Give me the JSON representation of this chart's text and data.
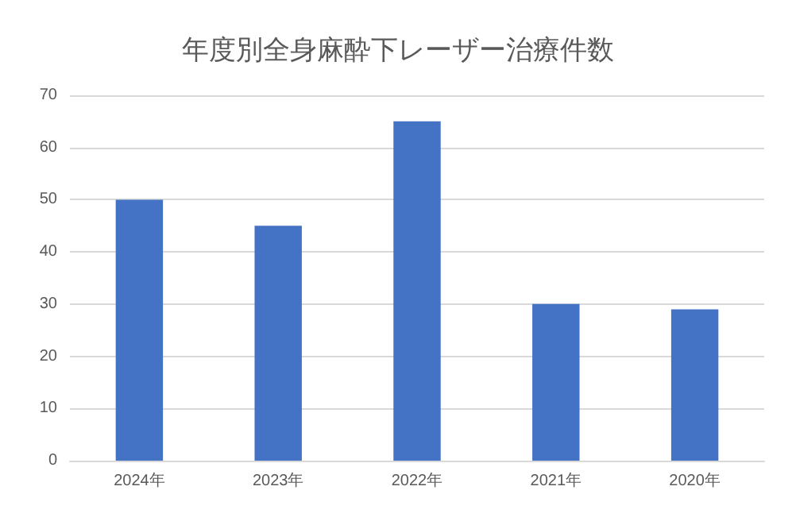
{
  "chart_data": {
    "type": "bar",
    "title": "年度別全身麻酔下レーザー治療件数",
    "categories": [
      "2024年",
      "2023年",
      "2022年",
      "2021年",
      "2020年"
    ],
    "values": [
      50,
      45,
      65,
      30,
      29
    ],
    "color": "#4472c4",
    "ylim": [
      0,
      70
    ],
    "yticks": [
      0,
      10,
      20,
      30,
      40,
      50,
      60,
      70
    ],
    "grid": "y"
  }
}
